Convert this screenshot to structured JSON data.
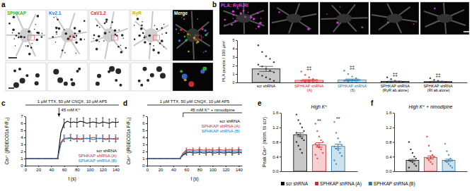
{
  "panel_labels": [
    "a",
    "b",
    "c",
    "d",
    "e",
    "f"
  ],
  "images": {
    "a": {
      "labels": [
        "SPHKAP",
        "Kv2.1",
        "CaV1.2",
        "RyR",
        "Merge"
      ],
      "colors": [
        "#35b535",
        "#3a6fd6",
        "#d8303a",
        "#c9b300",
        "#ffffff"
      ]
    },
    "b": {
      "label": "PLA: RyR-RI",
      "color": "#e03ce0"
    }
  },
  "chart_data": [
    {
      "type": "bar",
      "ylabel": "PLA puncta / 100 µm²",
      "categories": [
        "scr shRNA",
        "SPHKAP shRNA (A)",
        "SPHKAP shRNA (B)",
        "SPHKAP shRNA (RyR ab alone)",
        "SPHKAP shRNA (RI ab alone)"
      ],
      "values": [
        1.6,
        0.25,
        0.3,
        0.12,
        0.1
      ],
      "errors": [
        0.3,
        0.08,
        0.1,
        0.04,
        0.04
      ],
      "points": [
        [
          4.4,
          3.6,
          3.1,
          2.8,
          2.4,
          2.1,
          1.9,
          1.6,
          1.4,
          1.2,
          1.0,
          0.8,
          0.6,
          0.4,
          0.2
        ],
        [
          1.3,
          0.9,
          0.6,
          0.4,
          0.3,
          0.2,
          0.1,
          0.05,
          0,
          0
        ],
        [
          1.4,
          1.0,
          0.7,
          0.5,
          0.3,
          0.2,
          0.1,
          0,
          0
        ],
        [
          0.6,
          0.4,
          0.2,
          0.1,
          0,
          0,
          0
        ],
        [
          0.5,
          0.3,
          0.2,
          0.1,
          0,
          0,
          0
        ]
      ],
      "significance": [
        null,
        "‡‡",
        "‡‡",
        "‡‡",
        "‡‡"
      ],
      "colors": [
        "#000000",
        "#d62728",
        "#1f77b4",
        "#000000",
        "#000000"
      ],
      "ylim": [
        0,
        5
      ],
      "yticks": [
        0,
        1,
        2,
        3,
        4,
        5
      ],
      "grid": false
    },
    {
      "type": "line",
      "condition": "1 µM TTX, 50 µM CNQX, 10 µM AP5",
      "stimulus": {
        "text": "45 mM K⁺",
        "x": 52
      },
      "xlabel": "t (s)",
      "ylabel": "Ca²⁺ (jRGECO1a F/F₀)",
      "x": [
        0,
        5,
        10,
        15,
        20,
        25,
        30,
        35,
        40,
        45,
        50,
        55,
        60,
        65,
        70,
        75,
        80,
        85,
        90,
        95,
        100,
        105,
        110,
        115,
        120,
        125,
        130,
        135,
        140,
        145
      ],
      "series": [
        {
          "name": "scr shRNA",
          "color": "#000000",
          "values": [
            1.0,
            1.0,
            1.0,
            1.0,
            1.0,
            1.0,
            1.0,
            1.0,
            1.0,
            1.0,
            1.05,
            4.7,
            6.0,
            6.3,
            6.1,
            6.2,
            6.1,
            6.3,
            6.2,
            6.0,
            6.1,
            6.2,
            6.1,
            6.0,
            6.2,
            6.1,
            6.0,
            6.2,
            6.1,
            6.2
          ],
          "error": [
            0.05,
            null,
            0.05,
            null,
            0.05,
            null,
            0.05,
            null,
            0.05,
            null,
            0.05,
            null,
            0.6,
            null,
            0.6,
            null,
            0.6,
            null,
            0.6,
            null,
            0.6,
            null,
            0.6,
            null,
            0.6,
            null,
            0.6,
            null,
            0.6,
            null
          ]
        },
        {
          "name": "SPHKAP shRNA (A)",
          "color": "#d62728",
          "values": [
            1.0,
            1.0,
            1.0,
            1.0,
            1.0,
            1.0,
            1.0,
            1.0,
            1.0,
            1.0,
            1.0,
            3.3,
            3.9,
            3.9,
            4.0,
            3.8,
            3.9,
            3.8,
            3.9,
            3.8,
            3.9,
            4.0,
            3.9,
            3.8,
            3.9,
            3.8,
            3.9,
            3.8,
            3.9,
            3.9
          ],
          "error": [
            0.05,
            null,
            0.05,
            null,
            0.05,
            null,
            0.05,
            null,
            0.05,
            null,
            0.05,
            null,
            0.45,
            null,
            0.45,
            null,
            0.45,
            null,
            0.45,
            null,
            0.45,
            null,
            0.45,
            null,
            0.45,
            null,
            0.45,
            null,
            0.45,
            null
          ]
        },
        {
          "name": "SPHKAP shRNA (B)",
          "color": "#1f77b4",
          "values": [
            1.0,
            1.0,
            1.0,
            1.0,
            1.0,
            1.0,
            1.0,
            1.0,
            1.0,
            1.0,
            1.0,
            3.1,
            3.8,
            3.8,
            3.9,
            3.7,
            3.8,
            3.7,
            3.8,
            3.9,
            3.8,
            3.7,
            3.8,
            3.9,
            3.8,
            3.7,
            3.8,
            3.8,
            3.7,
            3.8
          ],
          "error": [
            0.05,
            null,
            0.05,
            null,
            0.05,
            null,
            0.05,
            null,
            0.05,
            null,
            0.05,
            null,
            0.4,
            null,
            0.4,
            null,
            0.4,
            null,
            0.4,
            null,
            0.4,
            null,
            0.4,
            null,
            0.4,
            null,
            0.4,
            null,
            0.4,
            null
          ]
        }
      ],
      "xlim": [
        0,
        145
      ],
      "xticks": [
        0,
        20,
        40,
        60,
        80,
        100,
        120,
        140
      ],
      "ylim": [
        0,
        7
      ],
      "yticks": [
        0,
        1,
        2,
        3,
        4,
        5,
        6,
        7
      ],
      "legend": "lower right",
      "grid": false
    },
    {
      "type": "line",
      "condition": "1 µM TTX, 50 µM CNQX, 10 µM AP5",
      "stimulus": {
        "text": "45 mM K⁺ + nimodipine",
        "x": 55,
        "x_end": 145
      },
      "xlabel": "t (s)",
      "ylabel": "Ca²⁺ (jRGECO1a F/F₀)",
      "x": [
        0,
        5,
        10,
        15,
        20,
        25,
        30,
        35,
        40,
        45,
        50,
        55,
        60,
        65,
        70,
        75,
        80,
        85,
        90,
        95,
        100,
        105,
        110,
        115,
        120,
        125,
        130,
        135,
        140,
        145
      ],
      "series": [
        {
          "name": "scr shRNA",
          "color": "#000000",
          "values": [
            1.0,
            1.0,
            1.0,
            1.0,
            1.0,
            1.0,
            1.0,
            1.0,
            1.0,
            1.0,
            1.0,
            1.5,
            1.8,
            1.9,
            1.8,
            1.8,
            1.9,
            1.8,
            1.8,
            1.9,
            1.8,
            1.8,
            1.9,
            1.8,
            1.8,
            1.9,
            1.8,
            1.8,
            1.9,
            1.8
          ],
          "error": [
            0.05,
            null,
            0.05,
            null,
            0.05,
            null,
            0.05,
            null,
            0.05,
            null,
            0.05,
            null,
            0.3,
            null,
            0.3,
            null,
            0.3,
            null,
            0.3,
            null,
            0.3,
            null,
            0.3,
            null,
            0.3,
            null,
            0.3,
            null,
            0.3,
            null
          ]
        },
        {
          "name": "SPHKAP shRNA (A)",
          "color": "#d62728",
          "values": [
            1.0,
            1.0,
            1.0,
            1.0,
            1.0,
            1.0,
            1.0,
            1.0,
            1.0,
            1.0,
            1.0,
            1.8,
            2.2,
            2.3,
            2.2,
            2.2,
            2.3,
            2.2,
            2.2,
            2.3,
            2.2,
            2.2,
            2.3,
            2.2,
            2.2,
            2.3,
            2.2,
            2.2,
            2.3,
            2.2
          ],
          "error": [
            0.05,
            null,
            0.05,
            null,
            0.05,
            null,
            0.05,
            null,
            0.05,
            null,
            0.05,
            null,
            0.3,
            null,
            0.3,
            null,
            0.3,
            null,
            0.3,
            null,
            0.3,
            null,
            0.3,
            null,
            0.3,
            null,
            0.3,
            null,
            0.3,
            null
          ]
        },
        {
          "name": "SPHKAP shRNA (B)",
          "color": "#1f77b4",
          "values": [
            1.0,
            1.0,
            1.0,
            1.0,
            1.0,
            1.0,
            1.0,
            1.0,
            1.0,
            1.0,
            1.0,
            1.6,
            2.0,
            2.1,
            2.0,
            2.0,
            2.1,
            2.0,
            2.0,
            2.1,
            2.0,
            2.0,
            2.1,
            2.0,
            2.0,
            2.1,
            2.0,
            2.0,
            2.1,
            2.0
          ],
          "error": [
            0.05,
            null,
            0.05,
            null,
            0.05,
            null,
            0.05,
            null,
            0.05,
            null,
            0.05,
            null,
            0.3,
            null,
            0.3,
            null,
            0.3,
            null,
            0.3,
            null,
            0.3,
            null,
            0.3,
            null,
            0.3,
            null,
            0.3,
            null,
            0.3,
            null
          ]
        }
      ],
      "xlim": [
        0,
        145
      ],
      "xticks": [
        0,
        20,
        40,
        60,
        80,
        100,
        120,
        140
      ],
      "ylim": [
        0,
        7
      ],
      "yticks": [
        0,
        1,
        2,
        3,
        4,
        5,
        6,
        7
      ],
      "legend": "upper right",
      "grid": false
    },
    {
      "type": "bar",
      "title": "High K⁺",
      "ylabel": "Peak Ca²⁺ (norm. to scr)",
      "categories": [
        null
      ],
      "series": [
        {
          "name": "scr shRNA",
          "color": "#000000",
          "values": [
            1.0
          ],
          "error": [
            0.05
          ],
          "points": [
            1.55,
            1.4,
            1.3,
            1.2,
            1.1,
            1.05,
            1.0,
            0.95,
            0.9,
            0.85,
            0.8,
            0.7,
            0.6,
            0.5
          ]
        },
        {
          "name": "SPHKAP shRNA (A)",
          "color": "#d62728",
          "values": [
            0.72
          ],
          "error": [
            0.06
          ],
          "significance": "**",
          "points": [
            1.3,
            1.1,
            0.95,
            0.85,
            0.8,
            0.75,
            0.7,
            0.65,
            0.6,
            0.5,
            0.45,
            0.35
          ]
        },
        {
          "name": "SPHKAP shRNA (B)",
          "color": "#1f77b4",
          "values": [
            0.68
          ],
          "error": [
            0.06
          ],
          "significance": "**",
          "points": [
            1.35,
            1.05,
            0.9,
            0.8,
            0.72,
            0.68,
            0.62,
            0.58,
            0.5,
            0.42,
            0.3,
            0.2
          ]
        }
      ],
      "ylim": [
        0,
        1.6
      ],
      "yticks": [
        {
          "value": 0,
          "label": "0.0"
        },
        0.4,
        0.8,
        1.2,
        1.6
      ],
      "tick_labels": "y",
      "legend": "below",
      "grid": false
    },
    {
      "type": "bar",
      "title": "High K⁺ + nimodipine",
      "categories": [
        null
      ],
      "series": [
        {
          "color": "#000000",
          "values": [
            0.3
          ],
          "error": [
            0.03
          ],
          "points": [
            0.8,
            0.6,
            0.5,
            0.4,
            0.35,
            0.3,
            0.28,
            0.25,
            0.2,
            0.15,
            0.1
          ]
        },
        {
          "color": "#d62728",
          "values": [
            0.38
          ],
          "error": [
            0.04
          ],
          "points": [
            0.95,
            0.7,
            0.55,
            0.45,
            0.4,
            0.35,
            0.3,
            0.25,
            0.2
          ]
        },
        {
          "color": "#1f77b4",
          "values": [
            0.3
          ],
          "error": [
            0.03
          ],
          "points": [
            0.75,
            0.55,
            0.45,
            0.35,
            0.3,
            0.28,
            0.25,
            0.2,
            0.15,
            0.1
          ]
        }
      ],
      "ylim": [
        0,
        1.6
      ],
      "yticks": [
        {
          "value": 0,
          "label": "0.0"
        },
        0.4,
        0.8,
        1.2,
        1.6
      ],
      "tick_labels": "y",
      "grid": false
    }
  ]
}
